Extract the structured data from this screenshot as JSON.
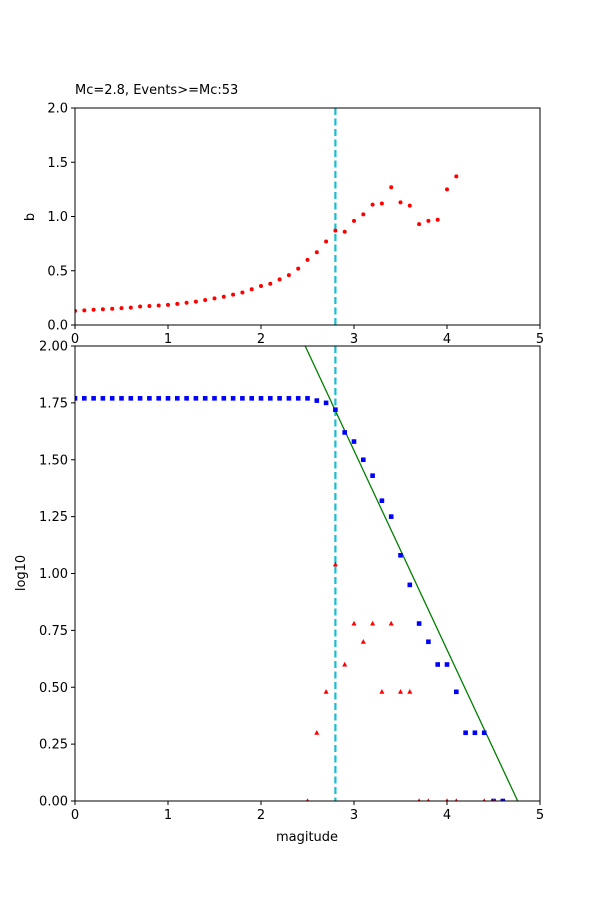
{
  "chart_data": [
    {
      "type": "scatter",
      "title": "Mc=2.8, Events>=Mc:53",
      "xlabel": "",
      "ylabel": "b",
      "xlim": [
        0,
        5
      ],
      "ylim": [
        0,
        2.0
      ],
      "xticks": [
        0,
        1,
        2,
        3,
        4,
        5
      ],
      "xtick_labels": [
        "0",
        "1",
        "2",
        "3",
        "4",
        "5"
      ],
      "yticks": [
        0.0,
        0.5,
        1.0,
        1.5,
        2.0
      ],
      "ytick_labels": [
        "0.0",
        "0.5",
        "1.0",
        "1.5",
        "2.0"
      ],
      "vline": {
        "x": 2.8,
        "color": "#17becf",
        "style": "dashed"
      },
      "series": [
        {
          "marker": "circle",
          "color": "#ff0000",
          "x": [
            0.0,
            0.1,
            0.2,
            0.3,
            0.4,
            0.5,
            0.6,
            0.7,
            0.8,
            0.9,
            1.0,
            1.1,
            1.2,
            1.3,
            1.4,
            1.5,
            1.6,
            1.7,
            1.8,
            1.9,
            2.0,
            2.1,
            2.2,
            2.3,
            2.4,
            2.5,
            2.6,
            2.7,
            2.8,
            2.9,
            3.0,
            3.1,
            3.2,
            3.3,
            3.4,
            3.5,
            3.6,
            3.7,
            3.8,
            3.9,
            4.0,
            4.1
          ],
          "y": [
            0.13,
            0.135,
            0.14,
            0.145,
            0.15,
            0.155,
            0.16,
            0.17,
            0.175,
            0.18,
            0.185,
            0.195,
            0.205,
            0.215,
            0.23,
            0.245,
            0.26,
            0.28,
            0.3,
            0.33,
            0.36,
            0.38,
            0.42,
            0.46,
            0.52,
            0.6,
            0.67,
            0.77,
            0.87,
            0.86,
            0.96,
            1.02,
            1.11,
            1.12,
            1.27,
            1.13,
            1.1,
            0.93,
            0.96,
            0.97,
            1.25,
            1.37
          ]
        }
      ]
    },
    {
      "type": "scatter",
      "title": "",
      "xlabel": "magitude",
      "ylabel": "log10",
      "xlim": [
        0,
        5
      ],
      "ylim": [
        0,
        2.0
      ],
      "xticks": [
        0,
        1,
        2,
        3,
        4,
        5
      ],
      "xtick_labels": [
        "0",
        "1",
        "2",
        "3",
        "4",
        "5"
      ],
      "yticks": [
        0.0,
        0.25,
        0.5,
        0.75,
        1.0,
        1.25,
        1.5,
        1.75,
        2.0
      ],
      "ytick_labels": [
        "0.00",
        "0.25",
        "0.50",
        "0.75",
        "1.00",
        "1.25",
        "1.50",
        "1.75",
        "2.00"
      ],
      "vline": {
        "x": 2.8,
        "color": "#17becf",
        "style": "dashed"
      },
      "fit_line": {
        "x": [
          2.475,
          4.76
        ],
        "y": [
          2.0,
          0.0
        ],
        "color": "#008000"
      },
      "series": [
        {
          "marker": "square",
          "color": "#0000ff",
          "x": [
            0.0,
            0.1,
            0.2,
            0.3,
            0.4,
            0.5,
            0.6,
            0.7,
            0.8,
            0.9,
            1.0,
            1.1,
            1.2,
            1.3,
            1.4,
            1.5,
            1.6,
            1.7,
            1.8,
            1.9,
            2.0,
            2.1,
            2.2,
            2.3,
            2.4,
            2.5,
            2.6,
            2.7,
            2.8,
            2.9,
            3.0,
            3.1,
            3.2,
            3.3,
            3.4,
            3.5,
            3.6,
            3.7,
            3.8,
            3.9,
            4.0,
            4.1,
            4.2,
            4.3,
            4.4,
            4.5,
            4.6
          ],
          "y": [
            1.77,
            1.77,
            1.77,
            1.77,
            1.77,
            1.77,
            1.77,
            1.77,
            1.77,
            1.77,
            1.77,
            1.77,
            1.77,
            1.77,
            1.77,
            1.77,
            1.77,
            1.77,
            1.77,
            1.77,
            1.77,
            1.77,
            1.77,
            1.77,
            1.77,
            1.77,
            1.76,
            1.75,
            1.72,
            1.62,
            1.58,
            1.5,
            1.43,
            1.32,
            1.25,
            1.08,
            0.95,
            0.78,
            0.7,
            0.6,
            0.6,
            0.48,
            0.3,
            0.3,
            0.3,
            0.0,
            0.0
          ]
        },
        {
          "marker": "triangle",
          "color": "#ff0000",
          "x": [
            2.5,
            2.6,
            2.7,
            2.8,
            2.9,
            3.0,
            3.1,
            3.2,
            3.3,
            3.4,
            3.5,
            3.6,
            3.7,
            3.8,
            4.0,
            4.1,
            4.4,
            4.5
          ],
          "y": [
            0.0,
            0.3,
            0.48,
            1.04,
            0.6,
            0.78,
            0.7,
            0.78,
            0.48,
            0.78,
            0.48,
            0.48,
            0.0,
            0.0,
            0.0,
            0.0,
            0.0,
            0.0
          ]
        }
      ]
    }
  ]
}
